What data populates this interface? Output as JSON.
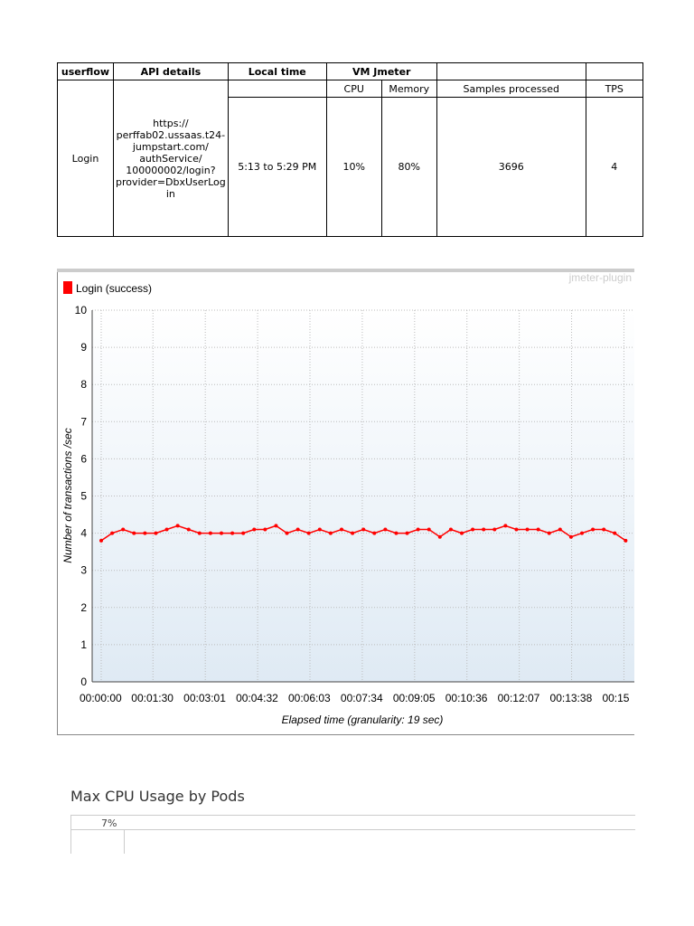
{
  "table": {
    "header": [
      "userflow",
      "API details",
      "Local time",
      "VM Jmeter"
    ],
    "subheader": [
      "CPU",
      "Memory",
      "Samples processed",
      "TPS"
    ],
    "rows": [
      [
        "Login",
        [
          "https://",
          "perffab02.ussaas.t24-",
          "jumpstart.com/",
          "authService/",
          "100000002/login?",
          "provider=DbxUserLog",
          "in"
        ],
        "5:13 to 5:29 PM",
        "10%",
        "80%",
        "3696",
        "4"
      ]
    ]
  },
  "chart_data": {
    "type": "line",
    "watermark": "jmeter-plugin",
    "ylabel": "Number of transactions /sec",
    "xlabel": "Elapsed time (granularity: 19 sec)",
    "x": [
      0,
      19,
      38,
      57,
      76,
      95,
      114,
      133,
      152,
      171,
      190,
      209,
      228,
      247,
      266,
      285,
      304,
      323,
      342,
      361,
      380,
      399,
      418,
      437,
      456,
      475,
      494,
      513,
      532,
      551,
      570,
      589,
      608,
      627,
      646,
      665,
      684,
      703,
      722,
      741,
      760,
      779,
      798,
      817,
      836,
      855,
      874,
      893,
      912
    ],
    "series": [
      {
        "name": "Login (success)",
        "color": "#ff0000",
        "values": [
          3.8,
          4.0,
          4.1,
          4.0,
          4.0,
          4.0,
          4.1,
          4.2,
          4.1,
          4.0,
          4.0,
          4.0,
          4.0,
          4.0,
          4.1,
          4.1,
          4.2,
          4.0,
          4.1,
          4.0,
          4.1,
          4.0,
          4.1,
          4.0,
          4.1,
          4.0,
          4.1,
          4.0,
          4.0,
          4.1,
          4.1,
          3.9,
          4.1,
          4.0,
          4.1,
          4.1,
          4.1,
          4.2,
          4.1,
          4.1,
          4.1,
          4.0,
          4.1,
          3.9,
          4.0,
          4.1,
          4.1,
          4.0,
          3.8
        ]
      }
    ],
    "xlim": [
      0,
      924
    ],
    "xticks": [
      {
        "value": 0,
        "label": "00:00:00"
      },
      {
        "value": 90,
        "label": "00:01:30"
      },
      {
        "value": 181,
        "label": "00:03:01"
      },
      {
        "value": 272,
        "label": "00:04:32"
      },
      {
        "value": 363,
        "label": "00:06:03"
      },
      {
        "value": 454,
        "label": "00:07:34"
      },
      {
        "value": 545,
        "label": "00:09:05"
      },
      {
        "value": 636,
        "label": "00:10:36"
      },
      {
        "value": 727,
        "label": "00:12:07"
      },
      {
        "value": 818,
        "label": "00:13:38"
      },
      {
        "value": 909,
        "label": "00:15"
      }
    ],
    "ylim": [
      0,
      10
    ],
    "yticks": [
      0,
      1,
      2,
      3,
      4,
      5,
      6,
      7,
      8,
      9,
      10
    ],
    "grid": true
  },
  "section": {
    "title": "Max CPU Usage by Pods",
    "value": "7%"
  }
}
